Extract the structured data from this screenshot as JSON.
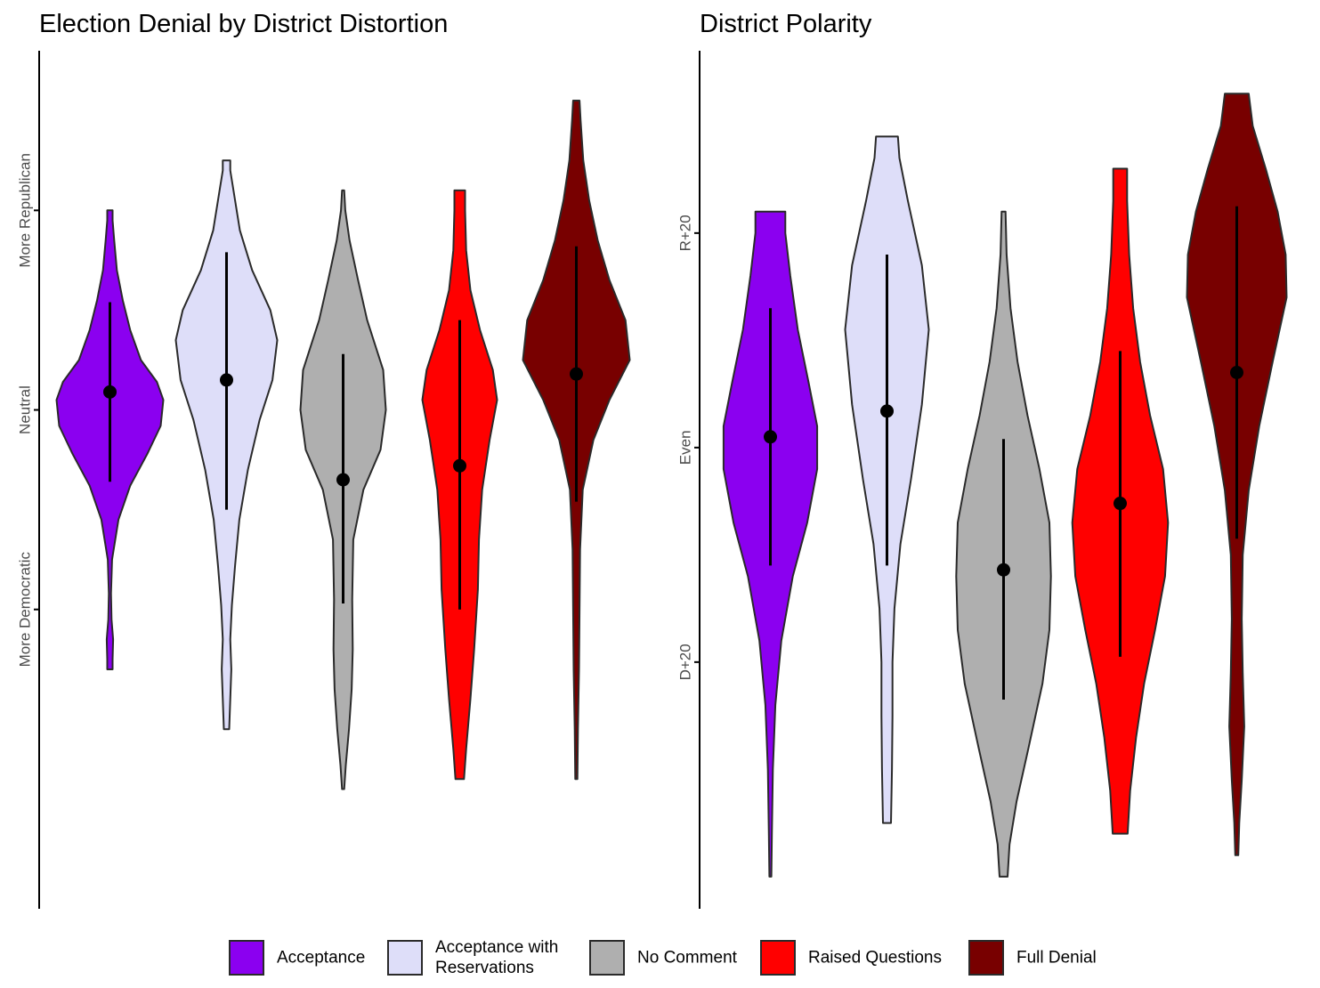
{
  "colors": {
    "Acceptance": "#8b00f0",
    "Acceptance with Reservations": "#dedef9",
    "No Comment": "#afafaf",
    "Raised Questions": "#ff0000",
    "Full Denial": "#780000"
  },
  "legend": {
    "items": [
      {
        "key": "Acceptance",
        "label": [
          "Acceptance"
        ]
      },
      {
        "key": "Acceptance with Reservations",
        "label": [
          "Acceptance with",
          "Reservations"
        ]
      },
      {
        "key": "No Comment",
        "label": [
          "No Comment"
        ]
      },
      {
        "key": "Raised Questions",
        "label": [
          "Raised Questions"
        ]
      },
      {
        "key": "Full Denial",
        "label": [
          "Full Denial"
        ]
      }
    ]
  },
  "chart_data": [
    {
      "type": "violin",
      "title": "Election Denial by District Distortion",
      "xlabel": "",
      "ylabel": "",
      "ylim": [
        -2.5,
        1.8
      ],
      "y_ticks": [
        {
          "value": 1,
          "label": "More Republican"
        },
        {
          "value": 0,
          "label": "Neutral"
        },
        {
          "value": -1,
          "label": "More Democratic"
        }
      ],
      "grid": false,
      "legend_position": "bottom",
      "series": [
        {
          "name": "Acceptance",
          "range": [
            -1.3,
            1.0
          ],
          "mean": 0.09,
          "interval": [
            -0.36,
            0.54
          ],
          "density": [
            [
              -1.3,
              0.05
            ],
            [
              -1.25,
              0.05
            ],
            [
              -1.15,
              0.06
            ],
            [
              -1.05,
              0.03
            ],
            [
              -0.92,
              0.02
            ],
            [
              -0.75,
              0.04
            ],
            [
              -0.55,
              0.16
            ],
            [
              -0.38,
              0.38
            ],
            [
              -0.22,
              0.7
            ],
            [
              -0.08,
              0.95
            ],
            [
              0.05,
              1.0
            ],
            [
              0.14,
              0.88
            ],
            [
              0.25,
              0.58
            ],
            [
              0.4,
              0.38
            ],
            [
              0.55,
              0.24
            ],
            [
              0.7,
              0.13
            ],
            [
              0.85,
              0.08
            ],
            [
              0.95,
              0.05
            ],
            [
              1.0,
              0.05
            ]
          ]
        },
        {
          "name": "Acceptance with Reservations",
          "range": [
            -1.6,
            1.25
          ],
          "mean": 0.15,
          "interval": [
            -0.5,
            0.79
          ],
          "density": [
            [
              -1.6,
              0.05
            ],
            [
              -1.45,
              0.07
            ],
            [
              -1.3,
              0.09
            ],
            [
              -1.15,
              0.07
            ],
            [
              -0.98,
              0.1
            ],
            [
              -0.78,
              0.16
            ],
            [
              -0.55,
              0.24
            ],
            [
              -0.3,
              0.4
            ],
            [
              -0.05,
              0.62
            ],
            [
              0.15,
              0.86
            ],
            [
              0.35,
              0.95
            ],
            [
              0.5,
              0.82
            ],
            [
              0.7,
              0.48
            ],
            [
              0.9,
              0.25
            ],
            [
              1.1,
              0.13
            ],
            [
              1.2,
              0.07
            ],
            [
              1.25,
              0.07
            ]
          ]
        },
        {
          "name": "No Comment",
          "range": [
            -1.9,
            1.1
          ],
          "mean": -0.35,
          "interval": [
            -0.97,
            0.28
          ],
          "density": [
            [
              -1.9,
              0.02
            ],
            [
              -1.78,
              0.05
            ],
            [
              -1.6,
              0.11
            ],
            [
              -1.4,
              0.16
            ],
            [
              -1.2,
              0.18
            ],
            [
              -0.95,
              0.17
            ],
            [
              -0.65,
              0.19
            ],
            [
              -0.4,
              0.38
            ],
            [
              -0.2,
              0.7
            ],
            [
              0.0,
              0.8
            ],
            [
              0.2,
              0.75
            ],
            [
              0.45,
              0.45
            ],
            [
              0.65,
              0.28
            ],
            [
              0.85,
              0.12
            ],
            [
              1.0,
              0.04
            ],
            [
              1.1,
              0.02
            ]
          ]
        },
        {
          "name": "Raised Questions",
          "range": [
            -1.85,
            1.1
          ],
          "mean": -0.28,
          "interval": [
            -1.0,
            0.45
          ],
          "density": [
            [
              -1.85,
              0.08
            ],
            [
              -1.7,
              0.12
            ],
            [
              -1.45,
              0.2
            ],
            [
              -1.2,
              0.27
            ],
            [
              -0.9,
              0.34
            ],
            [
              -0.65,
              0.36
            ],
            [
              -0.4,
              0.42
            ],
            [
              -0.15,
              0.56
            ],
            [
              0.05,
              0.7
            ],
            [
              0.2,
              0.62
            ],
            [
              0.4,
              0.38
            ],
            [
              0.6,
              0.2
            ],
            [
              0.8,
              0.12
            ],
            [
              1.0,
              0.1
            ],
            [
              1.1,
              0.1
            ]
          ]
        },
        {
          "name": "Full Denial",
          "range": [
            -1.85,
            1.55
          ],
          "mean": 0.18,
          "interval": [
            -0.46,
            0.82
          ],
          "density": [
            [
              -1.85,
              0.02
            ],
            [
              -1.6,
              0.03
            ],
            [
              -1.3,
              0.05
            ],
            [
              -1.0,
              0.06
            ],
            [
              -0.7,
              0.07
            ],
            [
              -0.4,
              0.12
            ],
            [
              -0.15,
              0.32
            ],
            [
              0.05,
              0.62
            ],
            [
              0.25,
              1.0
            ],
            [
              0.45,
              0.92
            ],
            [
              0.65,
              0.62
            ],
            [
              0.85,
              0.4
            ],
            [
              1.05,
              0.24
            ],
            [
              1.25,
              0.13
            ],
            [
              1.45,
              0.08
            ],
            [
              1.55,
              0.06
            ]
          ]
        }
      ]
    },
    {
      "type": "violin",
      "title": "District Polarity",
      "xlabel": "",
      "ylabel": "",
      "ylim": [
        -43,
        37
      ],
      "y_ticks": [
        {
          "value": 20,
          "label": "R+20"
        },
        {
          "value": 0,
          "label": "Even"
        },
        {
          "value": -20,
          "label": "D+20"
        }
      ],
      "grid": false,
      "legend_position": "bottom",
      "series": [
        {
          "name": "Acceptance",
          "range": [
            -40,
            22
          ],
          "mean": 1,
          "interval": [
            -11,
            13
          ],
          "density": [
            [
              -40,
              0.02
            ],
            [
              -36,
              0.03
            ],
            [
              -30,
              0.05
            ],
            [
              -24,
              0.1
            ],
            [
              -18,
              0.22
            ],
            [
              -12,
              0.45
            ],
            [
              -7,
              0.74
            ],
            [
              -2,
              0.94
            ],
            [
              2,
              0.94
            ],
            [
              6,
              0.77
            ],
            [
              11,
              0.55
            ],
            [
              16,
              0.4
            ],
            [
              20,
              0.3
            ],
            [
              22,
              0.3
            ]
          ]
        },
        {
          "name": "Acceptance with Reservations",
          "range": [
            -35,
            29
          ],
          "mean": 3.4,
          "interval": [
            -11,
            18
          ],
          "density": [
            [
              -35,
              0.08
            ],
            [
              -30,
              0.1
            ],
            [
              -25,
              0.11
            ],
            [
              -20,
              0.11
            ],
            [
              -15,
              0.15
            ],
            [
              -9,
              0.27
            ],
            [
              -3,
              0.48
            ],
            [
              4,
              0.7
            ],
            [
              11,
              0.84
            ],
            [
              17,
              0.7
            ],
            [
              23,
              0.42
            ],
            [
              27,
              0.25
            ],
            [
              29,
              0.22
            ]
          ]
        },
        {
          "name": "No Comment",
          "range": [
            -40,
            22
          ],
          "mean": -11.4,
          "interval": [
            -23.5,
            0.8
          ],
          "density": [
            [
              -40,
              0.08
            ],
            [
              -37,
              0.12
            ],
            [
              -33,
              0.26
            ],
            [
              -28,
              0.5
            ],
            [
              -22,
              0.78
            ],
            [
              -17,
              0.92
            ],
            [
              -12,
              0.95
            ],
            [
              -7,
              0.92
            ],
            [
              -2,
              0.72
            ],
            [
              3,
              0.48
            ],
            [
              8,
              0.28
            ],
            [
              13,
              0.14
            ],
            [
              18,
              0.06
            ],
            [
              22,
              0.04
            ]
          ]
        },
        {
          "name": "Raised Questions",
          "range": [
            -36,
            26
          ],
          "mean": -5.2,
          "interval": [
            -19.5,
            9
          ],
          "density": [
            [
              -36,
              0.15
            ],
            [
              -32,
              0.2
            ],
            [
              -27,
              0.32
            ],
            [
              -22,
              0.48
            ],
            [
              -17,
              0.7
            ],
            [
              -12,
              0.9
            ],
            [
              -7,
              0.96
            ],
            [
              -2,
              0.86
            ],
            [
              3,
              0.6
            ],
            [
              8,
              0.4
            ],
            [
              13,
              0.26
            ],
            [
              18,
              0.18
            ],
            [
              23,
              0.14
            ],
            [
              26,
              0.14
            ]
          ]
        },
        {
          "name": "Full Denial",
          "range": [
            -38,
            33
          ],
          "mean": 7,
          "interval": [
            -8.5,
            22.5
          ],
          "density": [
            [
              -38,
              0.03
            ],
            [
              -35,
              0.05
            ],
            [
              -31,
              0.1
            ],
            [
              -26,
              0.15
            ],
            [
              -21,
              0.12
            ],
            [
              -16,
              0.1
            ],
            [
              -10,
              0.12
            ],
            [
              -4,
              0.24
            ],
            [
              2,
              0.45
            ],
            [
              8,
              0.72
            ],
            [
              14,
              1.0
            ],
            [
              18,
              0.98
            ],
            [
              22,
              0.82
            ],
            [
              26,
              0.58
            ],
            [
              30,
              0.32
            ],
            [
              33,
              0.24
            ]
          ]
        }
      ]
    }
  ]
}
